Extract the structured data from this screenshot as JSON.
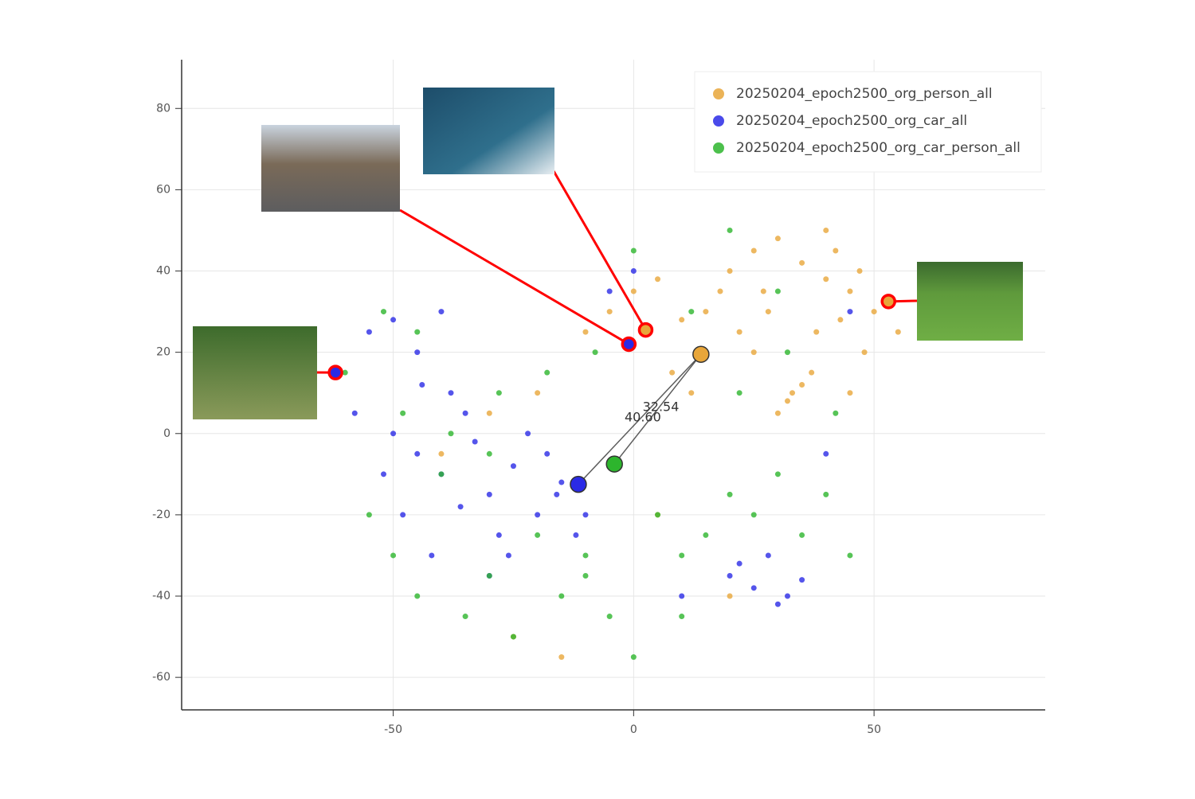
{
  "chart_data": {
    "type": "scatter",
    "xlim": [
      -94,
      85.6
    ],
    "ylim": [
      -68,
      92
    ],
    "xticks": [
      -50,
      0,
      50
    ],
    "yticks": [
      -60,
      -40,
      -20,
      0,
      20,
      40,
      60,
      80
    ],
    "grid": true,
    "legend": "upper right",
    "series": [
      {
        "name": "20250204_epoch2500_org_person_all",
        "color": "#e8a63a",
        "x": [
          20,
          25,
          30,
          35,
          40,
          45,
          50,
          28,
          33,
          38,
          43,
          48,
          22,
          27,
          32,
          37,
          42,
          47,
          15,
          18,
          10,
          5,
          0,
          -5,
          -10,
          8,
          12,
          30,
          35,
          25,
          40,
          45,
          55,
          -20,
          -30,
          -40,
          -25,
          20,
          -15,
          5
        ],
        "y": [
          40,
          45,
          48,
          42,
          38,
          35,
          30,
          30,
          10,
          25,
          28,
          20,
          25,
          35,
          8,
          15,
          45,
          40,
          30,
          35,
          28,
          38,
          35,
          30,
          25,
          15,
          10,
          5,
          12,
          20,
          50,
          10,
          25,
          10,
          5,
          -5,
          -50,
          -40,
          -55,
          -20
        ],
        "centroid_x": 14,
        "centroid_y": 19.5
      },
      {
        "name": "20250204_epoch2500_org_car_all",
        "color": "#2a2ae6",
        "x": [
          -50,
          -45,
          -40,
          -35,
          -30,
          -25,
          -20,
          -15,
          -12,
          -48,
          -42,
          -38,
          -33,
          -28,
          -22,
          -18,
          -44,
          -36,
          -26,
          -16,
          -52,
          -55,
          -40,
          -30,
          -10,
          20,
          25,
          30,
          32,
          35,
          28,
          22,
          -50,
          -45,
          -5,
          10,
          40,
          45,
          -58,
          0
        ],
        "y": [
          0,
          -5,
          -10,
          5,
          -15,
          -8,
          -20,
          -12,
          -25,
          -20,
          -30,
          10,
          -2,
          -25,
          0,
          -5,
          12,
          -18,
          -30,
          -15,
          -10,
          25,
          30,
          -35,
          -20,
          -35,
          -38,
          -42,
          -40,
          -36,
          -30,
          -32,
          28,
          20,
          35,
          -40,
          -5,
          30,
          5,
          40
        ],
        "centroid_x": -11.5,
        "centroid_y": -12.5,
        "distance": 40.6,
        "distance_label": "40.60"
      },
      {
        "name": "20250204_epoch2500_org_car_person_all",
        "color": "#2db52d",
        "x": [
          -55,
          -50,
          -45,
          -40,
          -35,
          -30,
          -25,
          -20,
          -15,
          -10,
          -5,
          0,
          5,
          10,
          15,
          20,
          25,
          30,
          35,
          40,
          -48,
          -38,
          -28,
          -18,
          -8,
          2,
          12,
          22,
          32,
          42,
          -52,
          -30,
          -10,
          10,
          30,
          -60,
          -45,
          0,
          20,
          45
        ],
        "y": [
          -20,
          -30,
          -40,
          -10,
          -45,
          -35,
          -50,
          -25,
          -40,
          -30,
          -45,
          -55,
          -20,
          -30,
          -25,
          -15,
          -20,
          -10,
          -25,
          -15,
          5,
          0,
          10,
          15,
          20,
          25,
          30,
          10,
          20,
          5,
          30,
          -5,
          -35,
          -45,
          35,
          15,
          25,
          45,
          50,
          -30
        ],
        "centroid_x": -4,
        "centroid_y": -7.5,
        "distance": 32.54
      }
    ],
    "highlights": {
      "x": [
        -62,
        -1,
        2.5,
        53
      ],
      "y": [
        15,
        22,
        25.5,
        32.5
      ],
      "colors": [
        "#2a2ae6",
        "#2a2ae6",
        "#e8a63a",
        "#e8a63a"
      ]
    }
  }
}
